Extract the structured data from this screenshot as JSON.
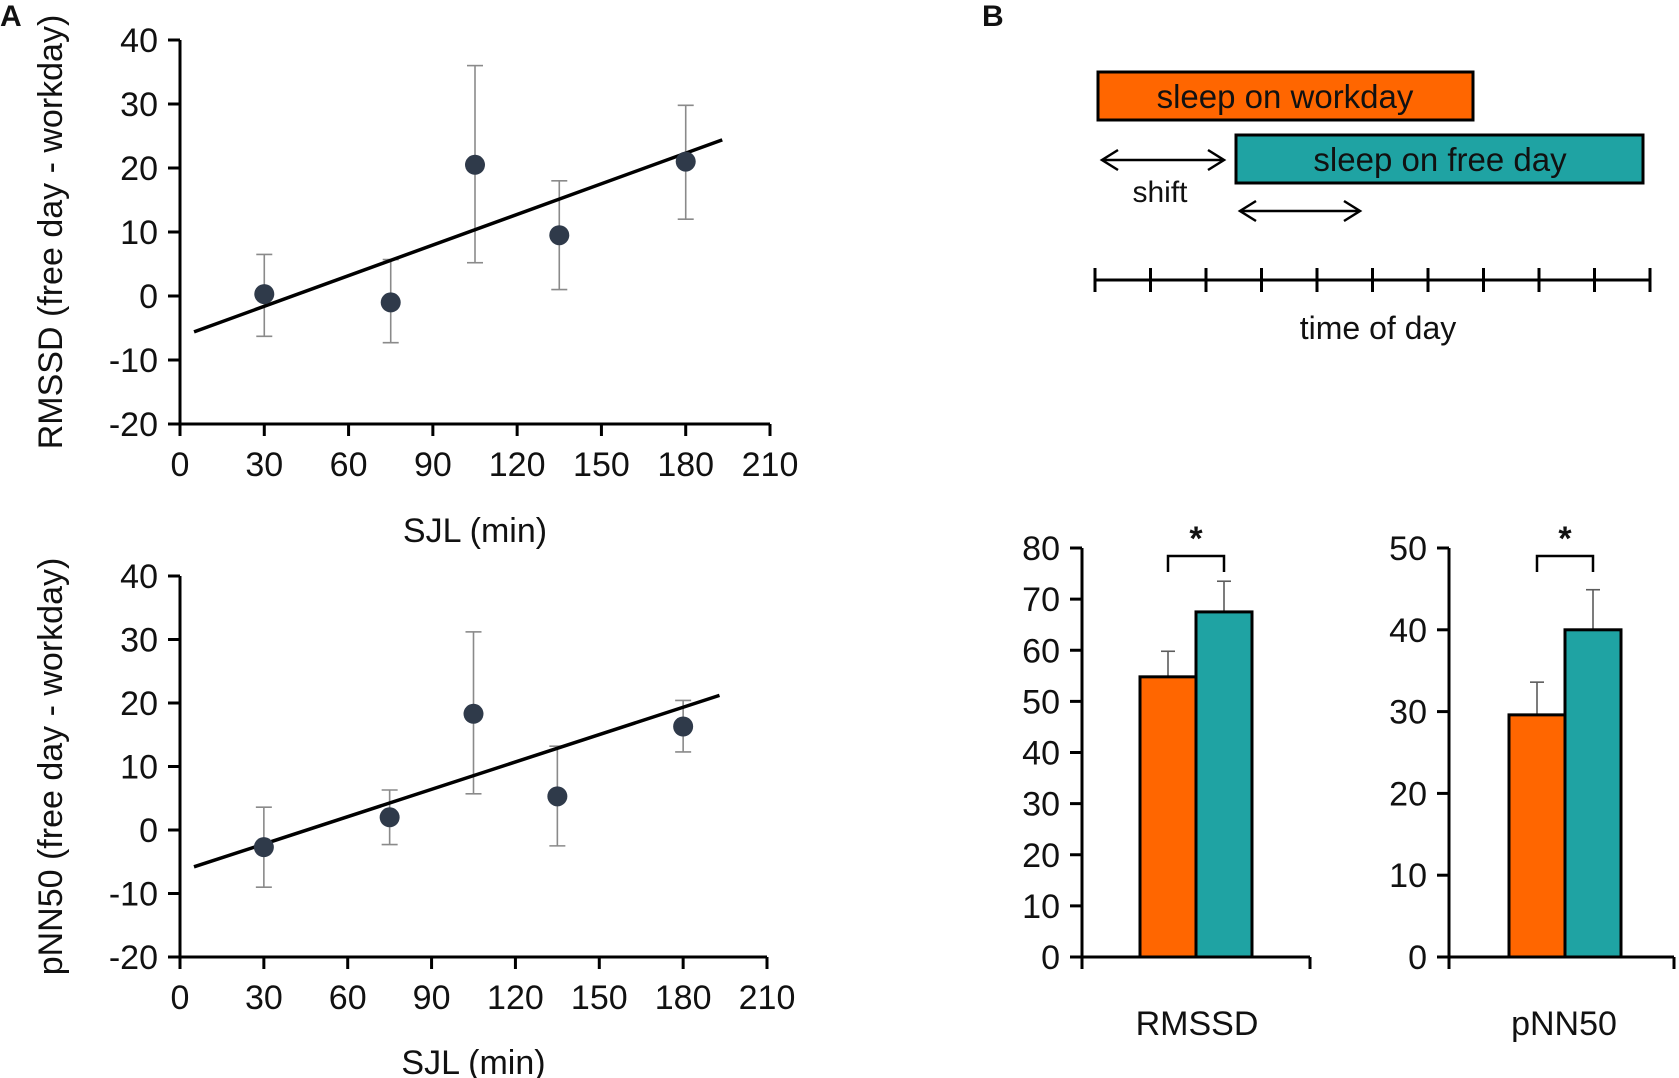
{
  "panels": {
    "a": "A",
    "b": "B"
  },
  "colors": {
    "workday": "#ff6600",
    "free_day": "#1fa3a3",
    "points": "#2f3a4a"
  },
  "diagram": {
    "workday_label": "sleep on workday",
    "free_day_label": "sleep on free day",
    "shift_label": "shift",
    "axis_label": "time of day",
    "tick_count": 11
  },
  "chart_data": [
    {
      "type": "scatter",
      "panel": "A",
      "title": "",
      "xlabel": "SJL  (min)",
      "ylabel": "RMSSD (free day - workday)",
      "xlim": [
        0,
        210
      ],
      "ylim": [
        -20,
        40
      ],
      "xticks": [
        0,
        30,
        60,
        90,
        120,
        150,
        180,
        210
      ],
      "yticks": [
        -20,
        -10,
        0,
        10,
        20,
        30,
        40
      ],
      "x": [
        30,
        75,
        105,
        135,
        180
      ],
      "y": [
        0.3,
        -1.0,
        20.5,
        9.5,
        21.0
      ],
      "err_low": [
        -6.3,
        -7.3,
        5.2,
        1.0,
        12.0
      ],
      "err_high": [
        6.5,
        5.7,
        36.0,
        18.0,
        29.8
      ],
      "trend": {
        "x": [
          5,
          193
        ],
        "y": [
          -5.6,
          24.4
        ]
      }
    },
    {
      "type": "scatter",
      "panel": "A",
      "title": "",
      "xlabel": "SJL  (min)",
      "ylabel": "pNN50 (free day - workday)",
      "xlim": [
        0,
        210
      ],
      "ylim": [
        -20,
        40
      ],
      "xticks": [
        0,
        30,
        60,
        90,
        120,
        150,
        180,
        210
      ],
      "yticks": [
        -20,
        -10,
        0,
        10,
        20,
        30,
        40
      ],
      "x": [
        30,
        75,
        105,
        135,
        180
      ],
      "y": [
        -2.7,
        2.0,
        18.3,
        5.3,
        16.3
      ],
      "err_low": [
        -9.0,
        -2.3,
        5.7,
        -2.5,
        12.3
      ],
      "err_high": [
        3.6,
        6.3,
        31.2,
        13.2,
        20.4
      ],
      "trend": {
        "x": [
          5,
          193
        ],
        "y": [
          -5.8,
          21.2
        ]
      }
    },
    {
      "type": "bar",
      "panel": "B",
      "title": "",
      "xlabel": "RMSSD",
      "ylabel": "",
      "ylim": [
        0,
        80
      ],
      "yticks": [
        0,
        10,
        20,
        30,
        40,
        50,
        60,
        70,
        80
      ],
      "series": [
        {
          "name": "sleep on workday",
          "values": [
            54.8
          ],
          "err": [
            5.0
          ]
        },
        {
          "name": "sleep on free day",
          "values": [
            67.5
          ],
          "err": [
            6.0
          ]
        }
      ],
      "significance": "*"
    },
    {
      "type": "bar",
      "panel": "B",
      "title": "",
      "xlabel": "pNN50",
      "ylabel": "",
      "ylim": [
        0,
        50
      ],
      "yticks": [
        0,
        10,
        20,
        30,
        40,
        50
      ],
      "series": [
        {
          "name": "sleep on workday",
          "values": [
            29.6
          ],
          "err": [
            4.0
          ]
        },
        {
          "name": "sleep on free day",
          "values": [
            40.0
          ],
          "err": [
            4.9
          ]
        }
      ],
      "significance": "*"
    }
  ]
}
